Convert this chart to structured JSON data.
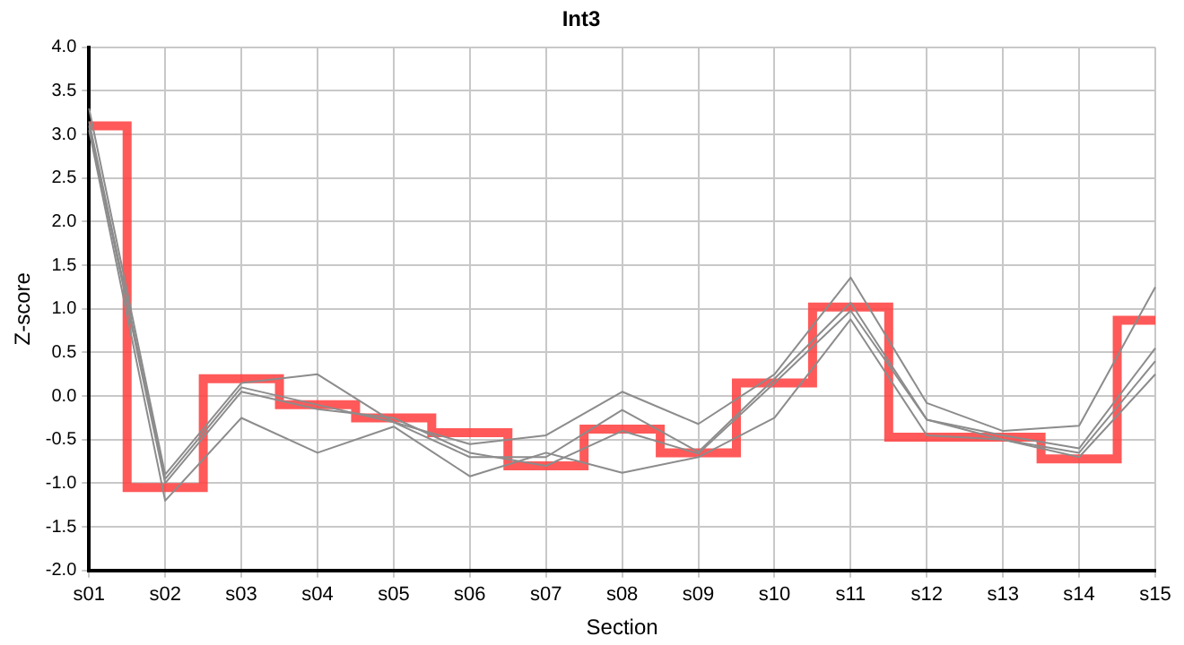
{
  "chart_data": {
    "type": "line",
    "title": "Int3",
    "xlabel": "Section",
    "ylabel": "Z-score",
    "categories": [
      "s01",
      "s02",
      "s03",
      "s04",
      "s05",
      "s06",
      "s07",
      "s08",
      "s09",
      "s10",
      "s11",
      "s12",
      "s13",
      "s14",
      "s15"
    ],
    "series": [
      {
        "type": "line",
        "color": "#8c8c8c",
        "values": [
          3.3,
          -0.9,
          0.15,
          0.25,
          -0.3,
          -0.55,
          -0.45,
          0.05,
          -0.32,
          0.25,
          1.36,
          -0.08,
          -0.4,
          -0.34,
          1.25
        ]
      },
      {
        "type": "line",
        "color": "#8c8c8c",
        "values": [
          3.15,
          -0.95,
          0.1,
          -0.1,
          -0.3,
          -0.7,
          -0.7,
          -0.16,
          -0.64,
          0.2,
          1.07,
          -0.27,
          -0.45,
          -0.6,
          0.55
        ]
      },
      {
        "type": "line",
        "color": "#8c8c8c",
        "values": [
          3.1,
          -1.0,
          0.05,
          -0.15,
          -0.25,
          -0.65,
          -0.8,
          -0.4,
          -0.66,
          0.15,
          0.98,
          -0.27,
          -0.5,
          -0.65,
          0.4
        ]
      },
      {
        "type": "line",
        "color": "#8c8c8c",
        "values": [
          3.05,
          -1.2,
          -0.25,
          -0.65,
          -0.35,
          -0.92,
          -0.65,
          -0.88,
          -0.7,
          -0.25,
          0.88,
          -0.45,
          -0.5,
          -0.7,
          0.25
        ]
      },
      {
        "type": "step",
        "color": "#ff4040",
        "values": [
          3.1,
          -1.05,
          0.2,
          -0.1,
          -0.25,
          -0.42,
          -0.8,
          -0.38,
          -0.65,
          0.15,
          1.02,
          -0.47,
          -0.47,
          -0.72,
          0.87
        ]
      }
    ],
    "ylim": [
      -2,
      4
    ],
    "yticks": [
      {
        "value": -2,
        "label": "-2.0"
      },
      {
        "value": -1.5,
        "label": "-1.5"
      },
      {
        "value": -1,
        "label": "-1.0"
      },
      {
        "value": -0.5,
        "label": "-0.5"
      },
      {
        "value": 0,
        "label": "0.0"
      },
      {
        "value": 0.5,
        "label": "0.5"
      },
      {
        "value": 1,
        "label": "1.0"
      },
      {
        "value": 1.5,
        "label": "1.5"
      },
      {
        "value": 2,
        "label": "2.0"
      },
      {
        "value": 2.5,
        "label": "2.5"
      },
      {
        "value": 3,
        "label": "3.0"
      },
      {
        "value": 3.5,
        "label": "3.5"
      },
      {
        "value": 4,
        "label": "4.0"
      }
    ],
    "grid": true,
    "legend": false,
    "marker": "none",
    "line_style": "solid"
  }
}
